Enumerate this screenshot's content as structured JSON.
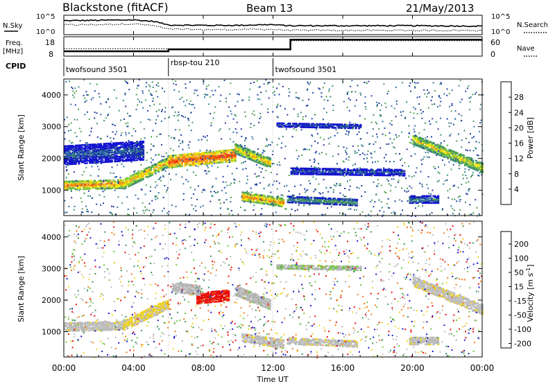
{
  "header": {
    "title_left": "Blackstone (fitACF)",
    "title_center": "Beam 13",
    "title_right": "21/May/2013"
  },
  "strip_noise": {
    "left_label": "N.Sky",
    "left_tick_top": "10^5",
    "left_tick_bottom": "10^0",
    "right_tick_top": "10^5",
    "right_tick_bottom": "10^0",
    "right_label": "N.Search"
  },
  "strip_freq": {
    "left_label_1": "Freq.",
    "left_label_2": "[MHz]",
    "left_tick_top": "18",
    "left_tick_bottom": "8",
    "right_tick_top": "60",
    "right_tick_bottom": "0",
    "right_label": "Nave"
  },
  "cpid": {
    "label": "CPID",
    "segments": [
      {
        "name": "twofsound 3501",
        "start_hour": 0,
        "end_hour": 6
      },
      {
        "name": "rbsp-tou 210",
        "start_hour": 6,
        "end_hour": 12
      },
      {
        "name": "twofsound 3501",
        "start_hour": 12,
        "end_hour": 24
      }
    ]
  },
  "power_panel": {
    "ylabel": "Slant Range [km]",
    "yticks": [
      "1000",
      "2000",
      "3000",
      "4000"
    ],
    "colorbar_label": "Power [dB]",
    "colorbar_ticks": [
      "4",
      "8",
      "12",
      "16",
      "20",
      "24",
      "28"
    ]
  },
  "velocity_panel": {
    "ylabel": "Slant Range [km]",
    "yticks": [
      "1000",
      "2000",
      "3000",
      "4000"
    ],
    "colorbar_label": "Velocity [m s",
    "colorbar_label_sup": "-1",
    "colorbar_label_end": "]",
    "colorbar_ticks": [
      "200",
      "100",
      "50",
      "15",
      "-15",
      "-50",
      "-100",
      "-200"
    ]
  },
  "x_axis": {
    "label": "Time UT",
    "ticks": [
      "00:00",
      "04:00",
      "08:00",
      "12:00",
      "16:00",
      "20:00",
      "00:00"
    ]
  },
  "chart_data": {
    "type": "heatmap",
    "title": "Blackstone (fitACF) Beam 13 21/May/2013",
    "xlabel": "Time UT",
    "ylabel": "Slant Range [km]",
    "xlim_hours": [
      0,
      24
    ],
    "ylim_km": [
      200,
      4500
    ],
    "noise_sky_log10": [
      [
        0,
        3.6
      ],
      [
        2,
        3.7
      ],
      [
        4,
        3.8
      ],
      [
        5.2,
        3.4
      ],
      [
        6,
        2.5
      ],
      [
        8,
        2.4
      ],
      [
        10,
        2.4
      ],
      [
        11.8,
        2.6
      ],
      [
        13,
        2.3
      ],
      [
        16,
        2.3
      ],
      [
        20,
        2.3
      ],
      [
        24,
        2.2
      ]
    ],
    "noise_search_log10": [
      [
        0,
        2.5
      ],
      [
        2,
        2.6
      ],
      [
        4,
        2.8
      ],
      [
        5.2,
        2.3
      ],
      [
        6,
        1.4
      ],
      [
        8,
        1.3
      ],
      [
        10,
        1.3
      ],
      [
        11.8,
        1.4
      ],
      [
        13,
        1.1
      ],
      [
        16,
        1.1
      ],
      [
        20,
        1.1
      ],
      [
        24,
        1.1
      ]
    ],
    "frequency_mhz": [
      [
        0,
        10.5
      ],
      [
        6,
        10.5
      ],
      [
        6,
        11.5
      ],
      [
        13,
        11.5
      ],
      [
        13,
        16.5
      ],
      [
        24,
        16.5
      ]
    ],
    "nave": [
      [
        0,
        23
      ],
      [
        13,
        23
      ],
      [
        13,
        48
      ],
      [
        24,
        48
      ]
    ],
    "power_colorbar_db": [
      0,
      32
    ],
    "velocity_colorbar_ms": [
      -250,
      250
    ],
    "power_echo_bands": [
      {
        "t0": 0,
        "r0": 1150,
        "t1": 3.4,
        "r1": 1200,
        "width_km": 280,
        "db": 24
      },
      {
        "t0": 3.4,
        "r0": 1200,
        "t1": 6,
        "r1": 1900,
        "width_km": 320,
        "db": 22
      },
      {
        "t0": 6,
        "r0": 1900,
        "t1": 9.8,
        "r1": 2100,
        "width_km": 380,
        "db": 27
      },
      {
        "t0": 9.8,
        "r0": 2300,
        "t1": 11.8,
        "r1": 1850,
        "width_km": 300,
        "db": 21
      },
      {
        "t0": 10.2,
        "r0": 800,
        "t1": 12.6,
        "r1": 600,
        "width_km": 260,
        "db": 24
      },
      {
        "t0": 12.8,
        "r0": 700,
        "t1": 16.8,
        "r1": 600,
        "width_km": 180,
        "db": 13
      },
      {
        "t0": 13,
        "r0": 1600,
        "t1": 19.5,
        "r1": 1550,
        "width_km": 200,
        "db": 7
      },
      {
        "t0": 12.2,
        "r0": 3050,
        "t1": 17,
        "r1": 3000,
        "width_km": 120,
        "db": 7
      },
      {
        "t0": 20,
        "r0": 2600,
        "t1": 24,
        "r1": 1700,
        "width_km": 320,
        "db": 20
      },
      {
        "t0": 19.8,
        "r0": 700,
        "t1": 21.5,
        "r1": 700,
        "width_km": 220,
        "db": 10
      },
      {
        "t0": 0,
        "r0": 2100,
        "t1": 4.5,
        "r1": 2250,
        "width_km": 600,
        "db": 7
      }
    ],
    "velocity_echo_bands": [
      {
        "t0": 0,
        "r0": 1150,
        "t1": 3.4,
        "r1": 1200,
        "width_km": 280,
        "ms": 5
      },
      {
        "t0": 3.4,
        "r0": 1200,
        "t1": 6,
        "r1": 1900,
        "width_km": 320,
        "ms": -30
      },
      {
        "t0": 7.6,
        "r0": 2050,
        "t1": 9.4,
        "r1": 2150,
        "width_km": 340,
        "ms": -220
      },
      {
        "t0": 6.2,
        "r0": 2400,
        "t1": 7.8,
        "r1": 2300,
        "width_km": 300,
        "ms": 30
      },
      {
        "t0": 9.8,
        "r0": 2300,
        "t1": 11.8,
        "r1": 1850,
        "width_km": 300,
        "ms": 40
      },
      {
        "t0": 10.2,
        "r0": 800,
        "t1": 12.6,
        "r1": 600,
        "width_km": 260,
        "ms": 0
      },
      {
        "t0": 12.8,
        "r0": 700,
        "t1": 16.8,
        "r1": 600,
        "width_km": 180,
        "ms": 0
      },
      {
        "t0": 20,
        "r0": 2600,
        "t1": 24,
        "r1": 1700,
        "width_km": 320,
        "ms": -5
      },
      {
        "t0": 19.8,
        "r0": 700,
        "t1": 21.5,
        "r1": 700,
        "width_km": 220,
        "ms": 0
      },
      {
        "t0": 12.2,
        "r0": 3050,
        "t1": 17,
        "r1": 3000,
        "width_km": 120,
        "ms": 60
      }
    ]
  }
}
